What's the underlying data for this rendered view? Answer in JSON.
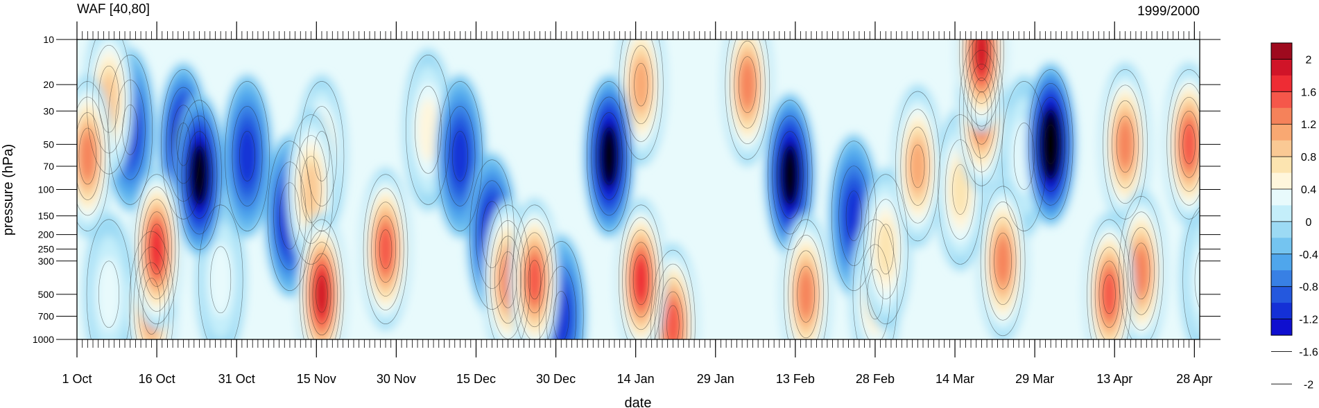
{
  "chart_data": {
    "type": "heatmap",
    "title_left": "WAF [40,80]",
    "title_right": "1999/2000",
    "xlabel": "date",
    "ylabel": "pressure (hPa)",
    "y_scale": "log",
    "y_reversed": true,
    "ylim": [
      1000,
      10
    ],
    "x_ticks": [
      "1 Oct",
      "16 Oct",
      "31 Oct",
      "15 Nov",
      "30 Nov",
      "15 Dec",
      "30 Dec",
      "14 Jan",
      "29 Jan",
      "13 Feb",
      "28 Feb",
      "14 Mar",
      "29 Mar",
      "13 Apr",
      "28 Apr"
    ],
    "y_ticks": [
      10,
      20,
      30,
      50,
      70,
      100,
      150,
      200,
      250,
      300,
      500,
      700,
      1000
    ],
    "colorbar": {
      "labels": [
        "2",
        "1.6",
        "1.2",
        "0.8",
        "0.4",
        "0",
        "-0.4",
        "-0.8",
        "-1.2",
        "-1.6",
        "-2"
      ],
      "colors": [
        "#9e0a1e",
        "#d01428",
        "#ee2c34",
        "#f5574a",
        "#f5825a",
        "#f9a872",
        "#fac994",
        "#fce4b0",
        "#fff6dc",
        "#e8fafc",
        "#c4eefa",
        "#9cdaf4",
        "#74c4f0",
        "#4fa6ec",
        "#3880e4",
        "#2458de",
        "#1430d6",
        "#0f0fcf"
      ],
      "levels": [
        2.2,
        2.0,
        1.8,
        1.6,
        1.4,
        1.2,
        1.0,
        0.8,
        0.6,
        0.4,
        0.2,
        0,
        -0.2,
        -0.4,
        -0.6,
        -0.8,
        -1.0,
        -1.2,
        -1.4,
        -1.6,
        -1.8,
        -2.0
      ]
    },
    "features": [
      {
        "day": 2,
        "p": 60,
        "value": 1.5
      },
      {
        "day": 6,
        "p": 25,
        "value": 1.2
      },
      {
        "day": 6,
        "p": 500,
        "value": 0.5
      },
      {
        "day": 10,
        "p": 40,
        "value": -0.9
      },
      {
        "day": 15,
        "p": 250,
        "value": 2.0
      },
      {
        "day": 14,
        "p": 600,
        "value": 1.6
      },
      {
        "day": 20,
        "p": 50,
        "value": -1.3
      },
      {
        "day": 23,
        "p": 80,
        "value": -1.5
      },
      {
        "day": 27,
        "p": 400,
        "value": 0.7
      },
      {
        "day": 32,
        "p": 60,
        "value": -1.0
      },
      {
        "day": 40,
        "p": 150,
        "value": -1.2
      },
      {
        "day": 44,
        "p": 100,
        "value": 1.2
      },
      {
        "day": 46,
        "p": 60,
        "value": 0.9
      },
      {
        "day": 46,
        "p": 500,
        "value": 2.2
      },
      {
        "day": 58,
        "p": 250,
        "value": 1.8
      },
      {
        "day": 66,
        "p": 40,
        "value": 0.8
      },
      {
        "day": 72,
        "p": 60,
        "value": -0.9
      },
      {
        "day": 78,
        "p": 200,
        "value": -1.1
      },
      {
        "day": 81,
        "p": 400,
        "value": 1.6
      },
      {
        "day": 86,
        "p": 400,
        "value": 1.7
      },
      {
        "day": 91,
        "p": 700,
        "value": -1.0
      },
      {
        "day": 100,
        "p": 60,
        "value": -1.6
      },
      {
        "day": 106,
        "p": 20,
        "value": 1.4
      },
      {
        "day": 106,
        "p": 400,
        "value": 2.0
      },
      {
        "day": 112,
        "p": 800,
        "value": 1.9
      },
      {
        "day": 126,
        "p": 20,
        "value": 1.6
      },
      {
        "day": 134,
        "p": 80,
        "value": -1.5
      },
      {
        "day": 137,
        "p": 500,
        "value": 1.6
      },
      {
        "day": 146,
        "p": 150,
        "value": -0.9
      },
      {
        "day": 150,
        "p": 500,
        "value": 1.0
      },
      {
        "day": 152,
        "p": 250,
        "value": 1.0
      },
      {
        "day": 158,
        "p": 70,
        "value": 1.4
      },
      {
        "day": 166,
        "p": 100,
        "value": 0.9
      },
      {
        "day": 170,
        "p": 12,
        "value": 2.3
      },
      {
        "day": 170,
        "p": 30,
        "value": 1.8
      },
      {
        "day": 174,
        "p": 300,
        "value": 1.6
      },
      {
        "day": 178,
        "p": 60,
        "value": 0.5
      },
      {
        "day": 183,
        "p": 50,
        "value": -1.7
      },
      {
        "day": 194,
        "p": 500,
        "value": 1.9
      },
      {
        "day": 197,
        "p": 50,
        "value": 1.5
      },
      {
        "day": 200,
        "p": 350,
        "value": 1.6
      },
      {
        "day": 209,
        "p": 50,
        "value": 1.8
      },
      {
        "day": 212,
        "p": 400,
        "value": 0.7
      }
    ]
  }
}
